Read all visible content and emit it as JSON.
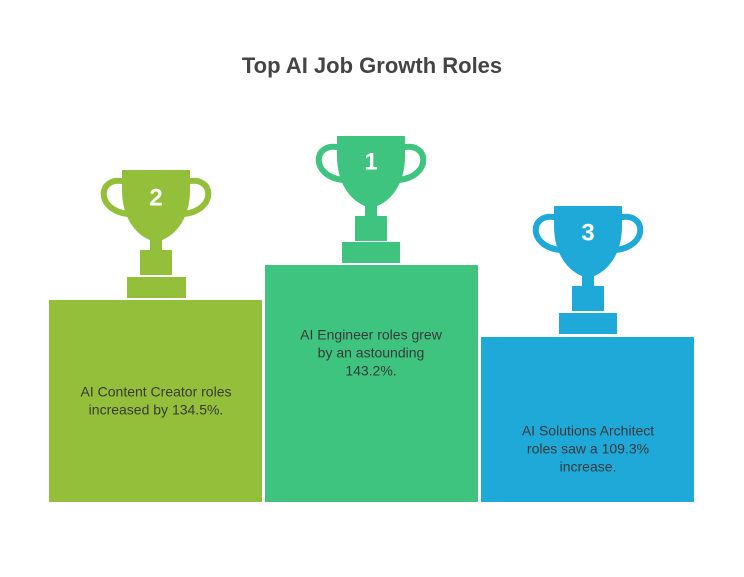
{
  "title": "Top AI Job Growth Roles",
  "podiums": [
    {
      "rank": "2",
      "lines": [
        "AI Content Creator roles",
        "increased by 134.5%."
      ]
    },
    {
      "rank": "1",
      "lines": [
        "AI Engineer roles grew",
        "by an astounding",
        "143.2%."
      ]
    },
    {
      "rank": "3",
      "lines": [
        "AI Solutions Architect",
        "roles saw a 109.3%",
        "increase."
      ]
    }
  ]
}
